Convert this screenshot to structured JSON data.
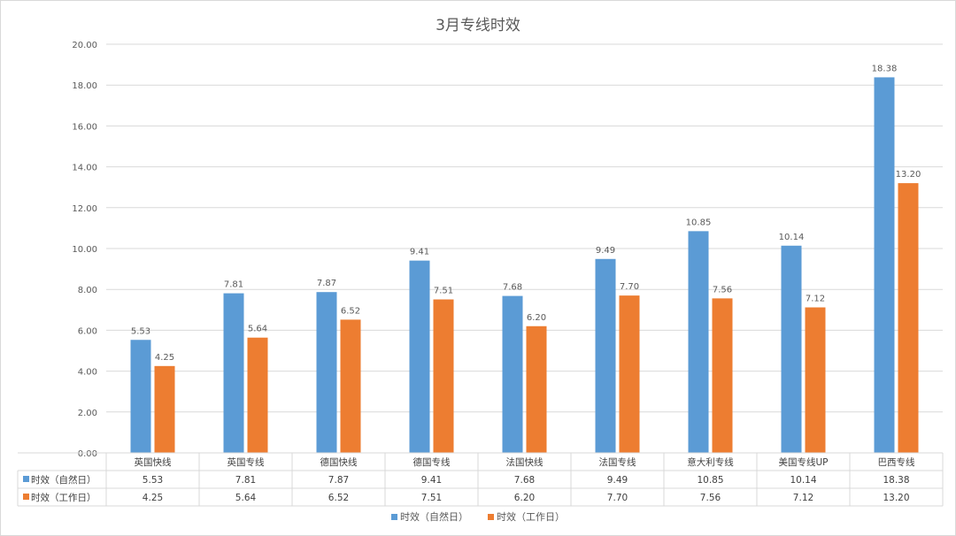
{
  "chart_data": {
    "type": "bar",
    "title": "3月专线时效",
    "categories": [
      "英国快线",
      "英国专线",
      "德国快线",
      "德国专线",
      "法国快线",
      "法国专线",
      "意大利专线",
      "美国专线UP",
      "巴西专线"
    ],
    "series": [
      {
        "name": "时效（自然日）",
        "color": "#5b9bd5",
        "values": [
          5.53,
          7.81,
          7.87,
          9.41,
          7.68,
          9.49,
          10.85,
          10.14,
          18.38
        ],
        "labels": [
          "5.53",
          "7.81",
          "7.87",
          "9.41",
          "7.68",
          "9.49",
          "10.85",
          "10.14",
          "18.38"
        ]
      },
      {
        "name": "时效（工作日）",
        "color": "#ed7d31",
        "values": [
          4.25,
          5.64,
          6.52,
          7.51,
          6.2,
          7.7,
          7.56,
          7.12,
          13.2
        ],
        "labels": [
          "4.25",
          "5.64",
          "6.52",
          "7.51",
          "6.20",
          "7.70",
          "7.56",
          "7.12",
          "13.20"
        ]
      }
    ],
    "y_ticks": [
      "0.00",
      "2.00",
      "4.00",
      "6.00",
      "8.00",
      "10.00",
      "12.00",
      "14.00",
      "16.00",
      "18.00",
      "20.00"
    ],
    "ylim": [
      0,
      20
    ],
    "grid": true,
    "legend_position": "bottom",
    "data_table": true
  }
}
